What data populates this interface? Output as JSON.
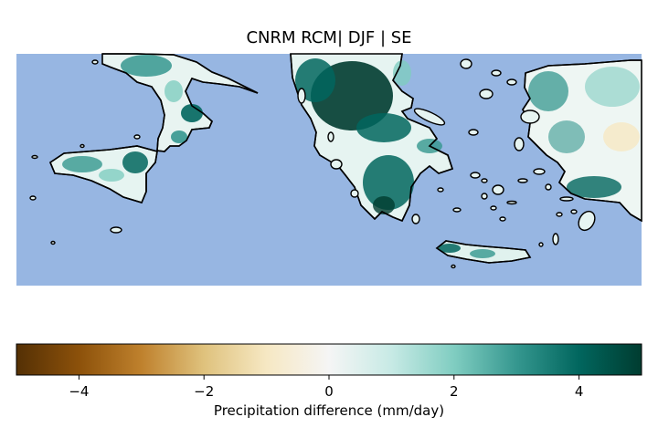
{
  "title": "CNRM RCM| DJF | SE",
  "colorbar": {
    "label": "Precipitation difference (mm/day)",
    "range": [
      -5,
      5
    ],
    "ticks": [
      {
        "value": -4,
        "label": "−4"
      },
      {
        "value": -2,
        "label": "−2"
      },
      {
        "value": 0,
        "label": "0"
      },
      {
        "value": 2,
        "label": "2"
      },
      {
        "value": 4,
        "label": "4"
      }
    ],
    "colormap": "BrBG",
    "stops": [
      "#543005",
      "#8c510a",
      "#bf812d",
      "#dfc27d",
      "#f6e8c3",
      "#f5f5f5",
      "#c7eae5",
      "#80cdc1",
      "#35978f",
      "#01665e",
      "#003c30"
    ]
  },
  "colors": {
    "sea": "#97b6e2",
    "coastline": "#000000"
  }
}
